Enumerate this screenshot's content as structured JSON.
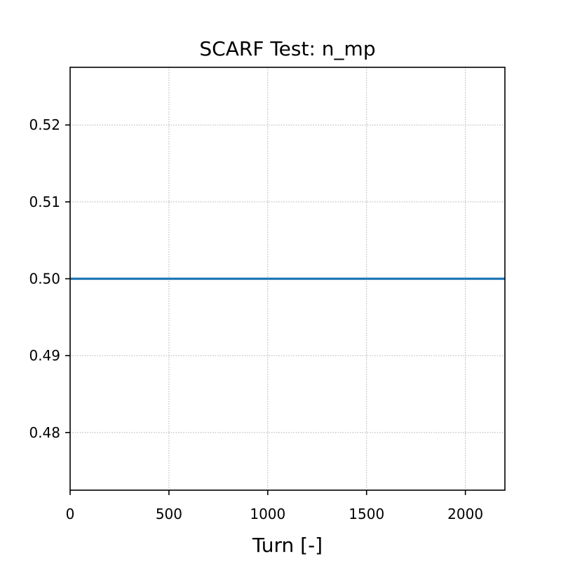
{
  "chart_data": {
    "type": "line",
    "title": "SCARF Test: n_mp",
    "xlabel": "Turn [-]",
    "ylabel": "",
    "xlim": [
      0,
      2200
    ],
    "ylim": [
      0.4725,
      0.5275
    ],
    "xticks": [
      0,
      500,
      1000,
      1500,
      2000
    ],
    "yticks": [
      0.48,
      0.49,
      0.5,
      0.51,
      0.52
    ],
    "xtick_labels": [
      "0",
      "500",
      "1000",
      "1500",
      "2000"
    ],
    "ytick_labels": [
      "0.48",
      "0.49",
      "0.50",
      "0.51",
      "0.52"
    ],
    "grid": true,
    "series": [
      {
        "x": [
          0,
          2200
        ],
        "y": [
          0.5,
          0.5
        ]
      }
    ],
    "colors": {
      "series": "#1f77b4",
      "grid": "#b0b0b0",
      "axes": "#000000"
    }
  }
}
